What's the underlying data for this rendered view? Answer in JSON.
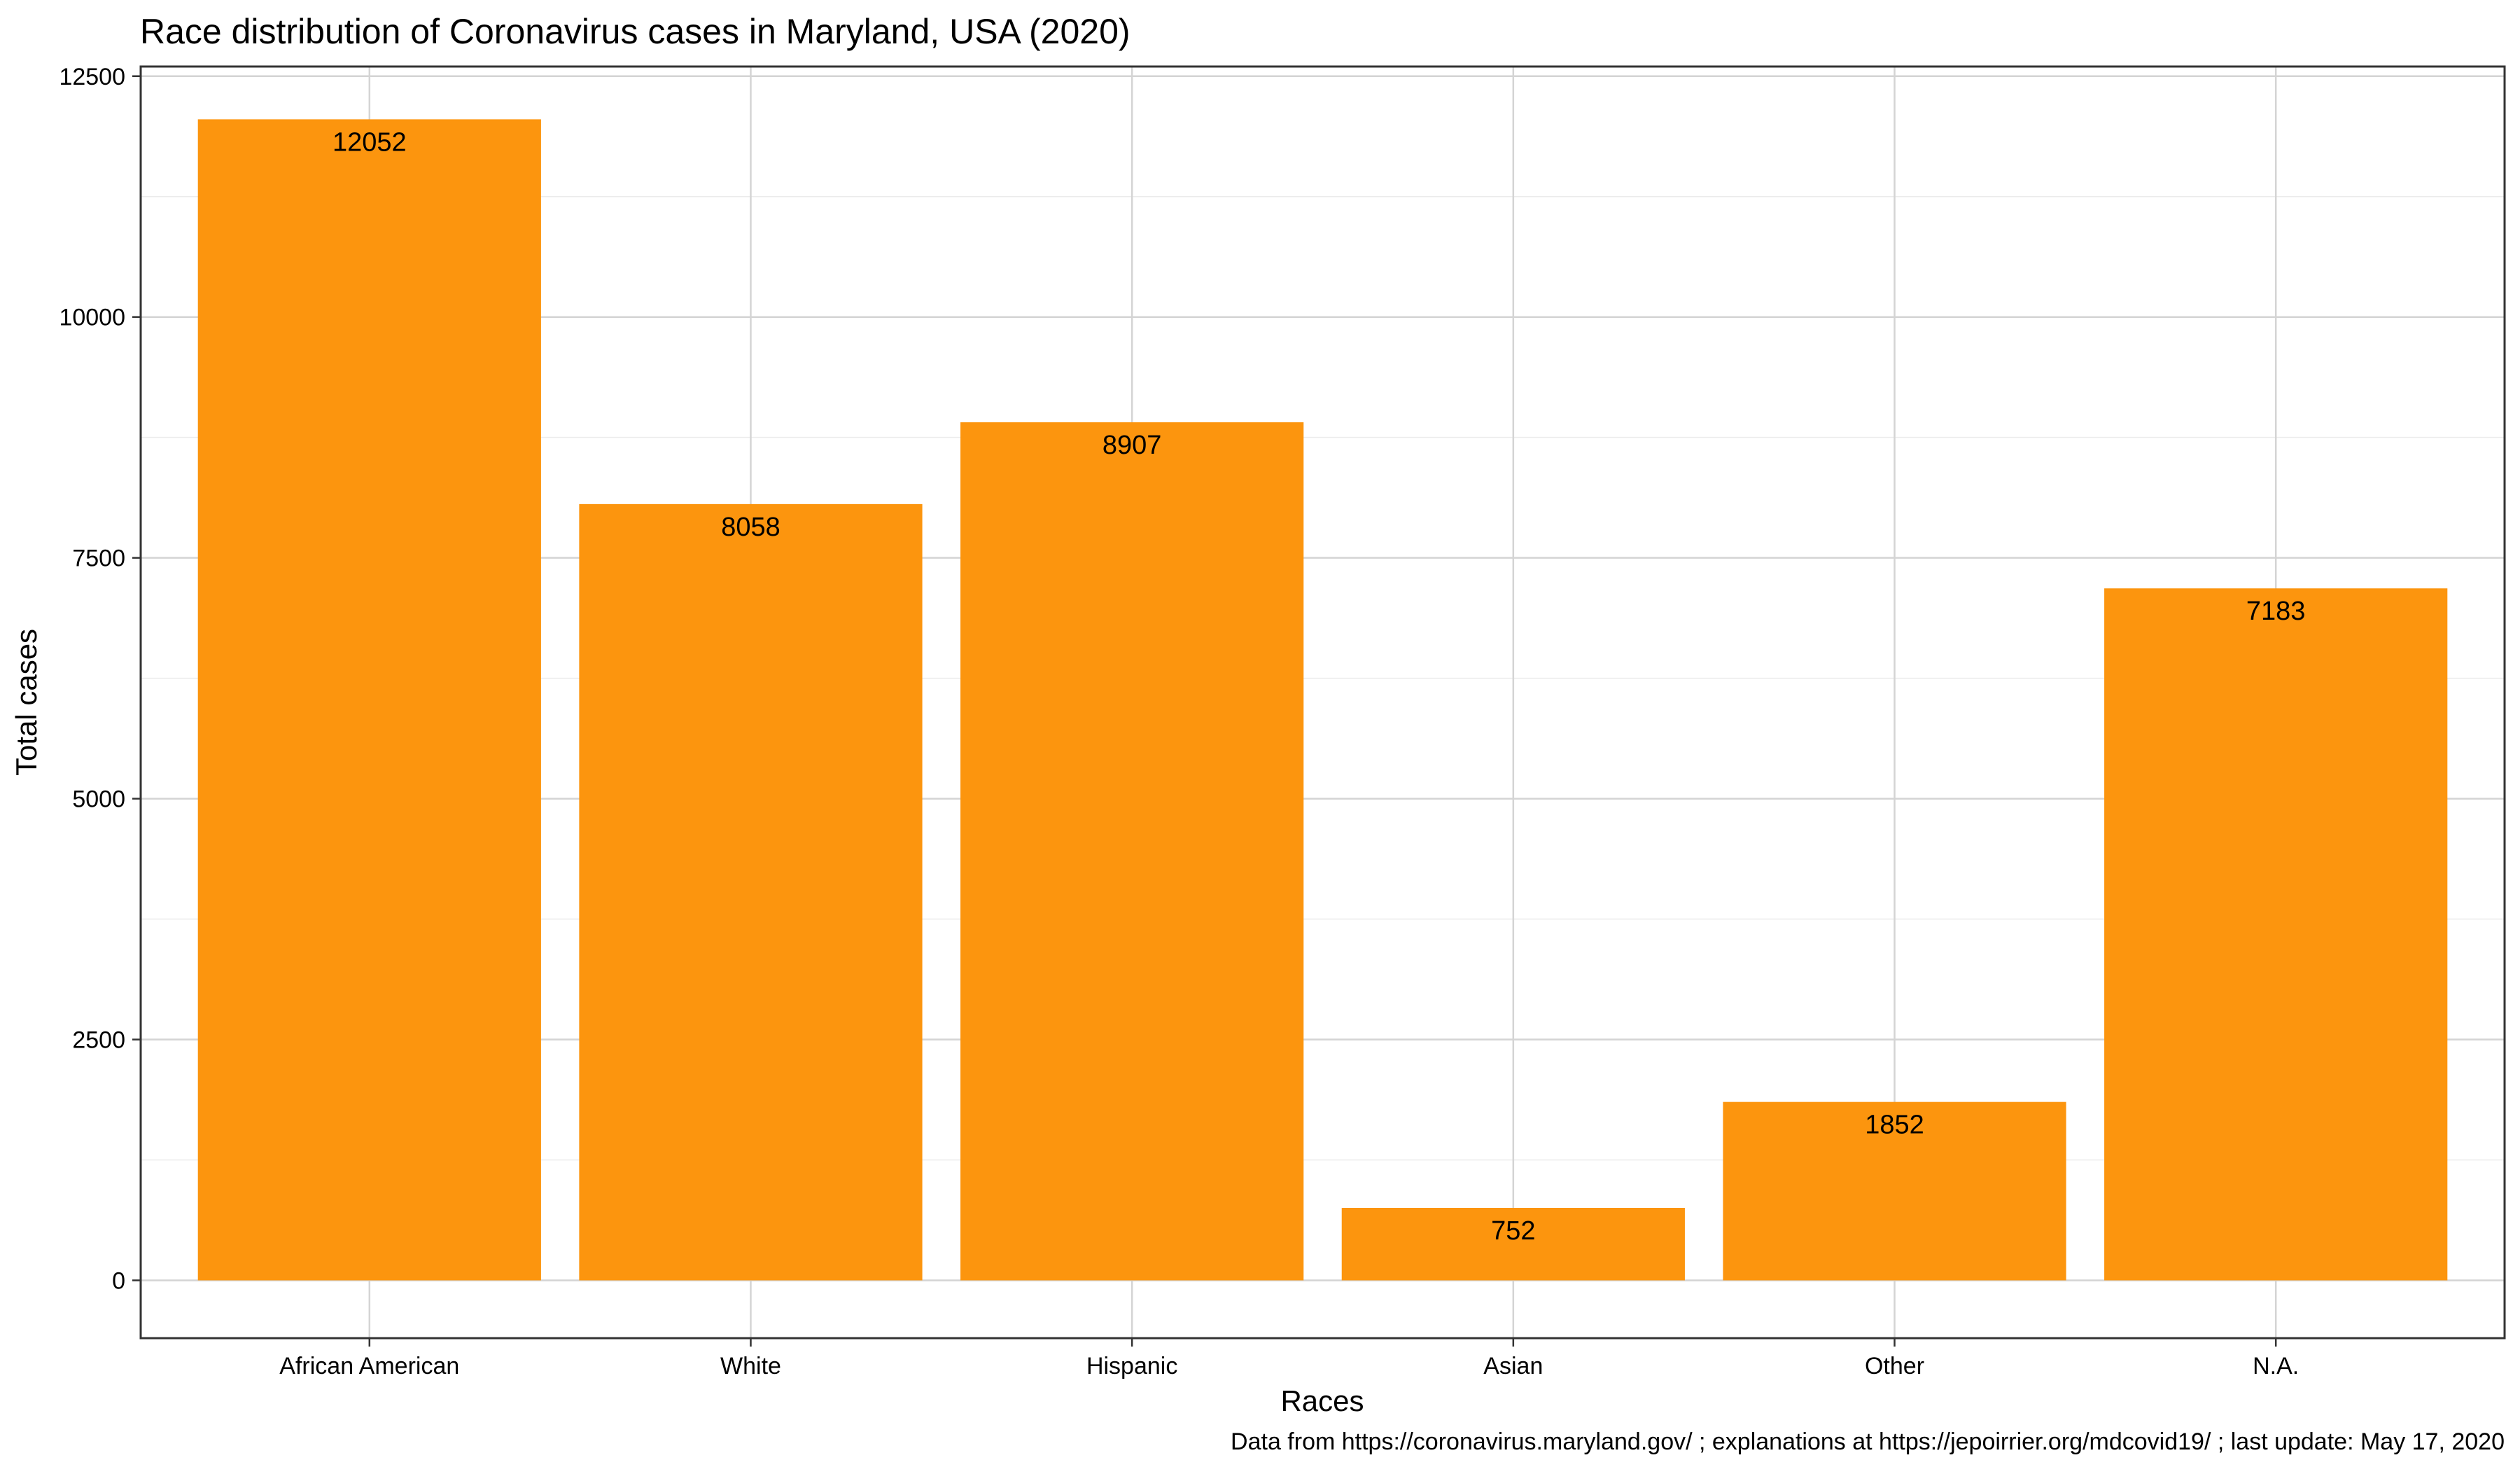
{
  "chart_data": {
    "type": "bar",
    "title": "Race distribution of Coronavirus cases in Maryland, USA (2020)",
    "xlabel": "Races",
    "ylabel": "Total cases",
    "categories": [
      "African American",
      "White",
      "Hispanic",
      "Asian",
      "Other",
      "N.A."
    ],
    "values": [
      12052,
      8058,
      8907,
      752,
      1852,
      7183
    ],
    "data_labels": [
      "12052",
      "8058",
      "8907",
      "752",
      "1852",
      "7183"
    ],
    "ylim": [
      -600,
      12600
    ],
    "yticks": [
      0,
      2500,
      5000,
      7500,
      10000,
      12500
    ],
    "ytick_labels": [
      "0",
      "2500",
      "5000",
      "7500",
      "10000",
      "12500"
    ],
    "grid": true,
    "legend": "none",
    "bar_color": "#FC950E",
    "caption": "Data from https://coronavirus.maryland.gov/ ; explanations at https://jepoirrier.org/mdcovid19/ ; last update: May 17, 2020"
  }
}
